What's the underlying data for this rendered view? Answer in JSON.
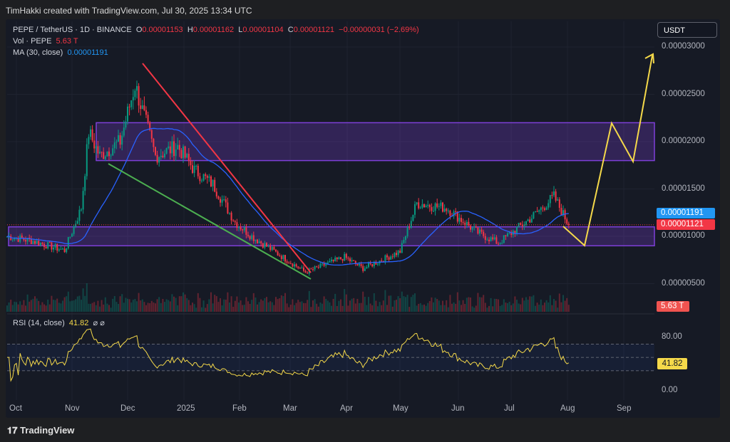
{
  "credit": "TimHakki created with TradingView.com, Jul 30, 2025 13:34 UTC",
  "legend": {
    "symbol": "PEPE / TetherUS · 1D · BINANCE",
    "o_label": "O",
    "o": "0.00001153",
    "h_label": "H",
    "h": "0.00001162",
    "l_label": "L",
    "l": "0.00001104",
    "c_label": "C",
    "c": "0.00001121",
    "change": "−0.00000031 (−2.69%)",
    "vol_label": "Vol · PEPE",
    "vol": "5.63 T",
    "ma_label": "MA (30, close)",
    "ma": "0.00001191",
    "rsi_label": "RSI (14, close)",
    "rsi": "41.82",
    "rsi_icons": "⌀ ⌀"
  },
  "currency_button": "USDT",
  "price_labels": {
    "ma": "0.00001191",
    "close": "0.00001121",
    "volume": "5.63 T",
    "rsi": "41.82"
  },
  "colors": {
    "up": "#089981",
    "down": "#f23645",
    "ma": "#2962ff",
    "box": "#7e3fd8",
    "trend_down": "#f23645",
    "trend_support": "#4caf50",
    "projection": "#f5d94a"
  },
  "chart_data": {
    "type": "candlestick",
    "symbol": "PEPE/USDT",
    "interval": "1D",
    "y_ticks": [
      "0.00003000",
      "0.00002500",
      "0.00002000",
      "0.00001500",
      "0.00001000",
      "0.00000500"
    ],
    "y_tick_values": [
      3e-05,
      2.5e-05,
      2e-05,
      1.5e-05,
      1e-05,
      5e-06
    ],
    "x_ticks": [
      "Oct",
      "Nov",
      "Dec",
      "2025",
      "Feb",
      "Mar",
      "Apr",
      "May",
      "Jun",
      "Jul",
      "Aug",
      "Sep"
    ],
    "price_anchors": [
      [
        0,
        1e-05
      ],
      [
        14,
        9.5e-06
      ],
      [
        31,
        8.5e-06
      ],
      [
        40,
        1.3e-05
      ],
      [
        44,
        2.1e-05
      ],
      [
        50,
        1.85e-05
      ],
      [
        61,
        2e-05
      ],
      [
        69,
        2.6e-05
      ],
      [
        80,
        1.85e-05
      ],
      [
        92,
        1.95e-05
      ],
      [
        101,
        1.7e-05
      ],
      [
        111,
        1.55e-05
      ],
      [
        123,
        1.15e-05
      ],
      [
        132,
        1e-05
      ],
      [
        151,
        7.5e-06
      ],
      [
        161,
        6.2e-06
      ],
      [
        182,
        7.8e-06
      ],
      [
        192,
        6.6e-06
      ],
      [
        212,
        8.4e-06
      ],
      [
        221,
        1.35e-05
      ],
      [
        237,
        1.3e-05
      ],
      [
        253,
        1.05e-05
      ],
      [
        265,
        9.3e-06
      ],
      [
        283,
        1.2e-05
      ],
      [
        295,
        1.42e-05
      ],
      [
        303,
        1.121e-05
      ]
    ],
    "zones": [
      {
        "top": 2.2e-05,
        "bottom": 1.8e-05
      },
      {
        "top": 1.1e-05,
        "bottom": 9e-06
      }
    ],
    "rsi_ticks": [
      "80.00",
      "0.00"
    ],
    "rsi_levels": [
      70,
      50,
      30
    ]
  }
}
